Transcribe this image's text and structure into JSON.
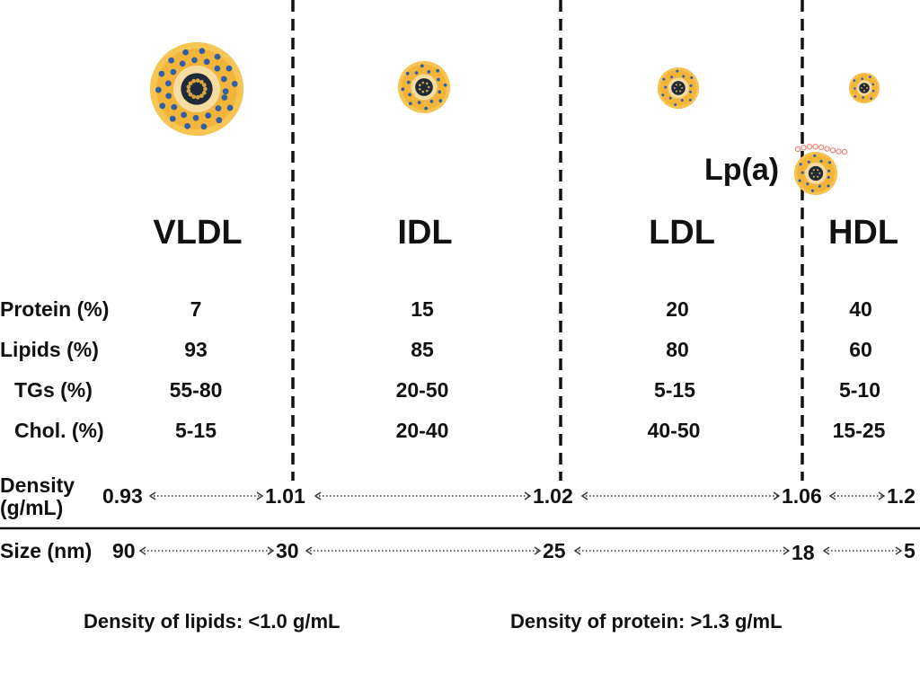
{
  "classes": [
    {
      "name": "VLDL",
      "protein": "7",
      "lipids": "93",
      "tgs": "55-80",
      "chol": "5-15"
    },
    {
      "name": "IDL",
      "protein": "15",
      "lipids": "85",
      "tgs": "20-50",
      "chol": "20-40"
    },
    {
      "name": "LDL",
      "protein": "20",
      "lipids": "80",
      "tgs": "5-15",
      "chol": "40-50"
    },
    {
      "name": "HDL",
      "protein": "40",
      "lipids": "60",
      "tgs": "5-10",
      "chol": "15-25"
    }
  ],
  "lpa_label": "Lp(a)",
  "row_labels": {
    "protein": "Protein (%)",
    "lipids": "Lipids (%)",
    "tgs": "TGs (%)",
    "chol": "Chol. (%)"
  },
  "density": {
    "label_line1": "Density",
    "label_line2": "(g/mL)",
    "values": [
      "0.93",
      "1.01",
      "1.02",
      "1.06",
      "1.2"
    ]
  },
  "size": {
    "label": "Size (nm)",
    "values": [
      "90",
      "30",
      "25",
      "18",
      "5"
    ]
  },
  "footnotes": {
    "lipids": "Density of lipids: <1.0 g/mL",
    "protein": "Density of protein: >1.3 g/mL"
  },
  "colors": {
    "text": "#111111",
    "shell": "#f3b43a",
    "protein_dot": "#2f5fa6",
    "core": "#1f2b3a",
    "apo": "#e8546a"
  }
}
